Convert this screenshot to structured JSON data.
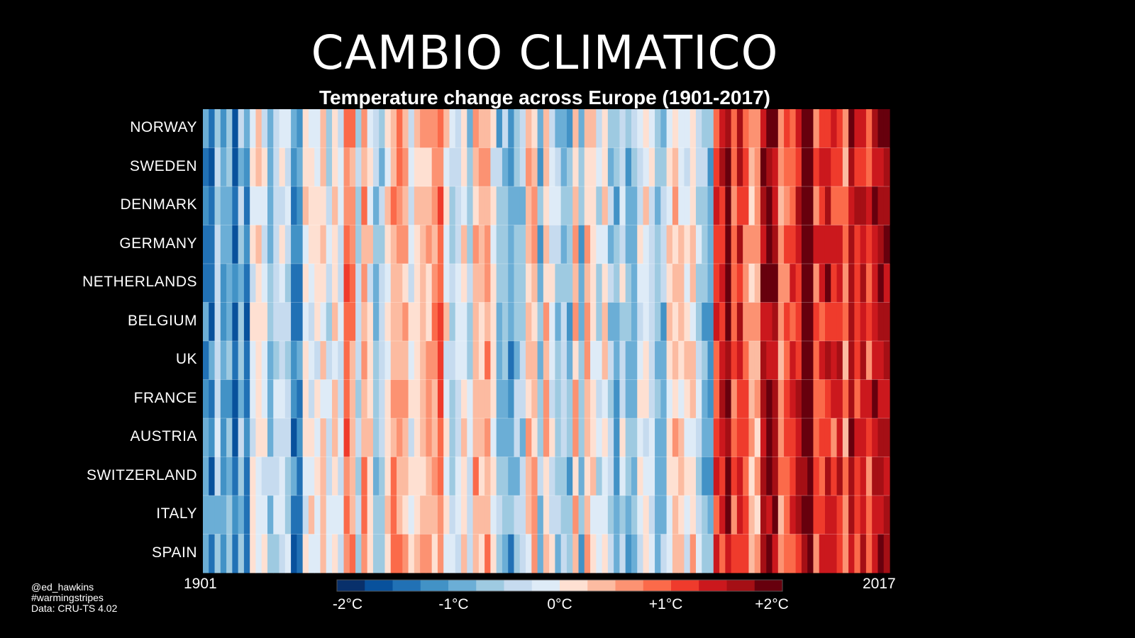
{
  "headline": "CAMBIO CLIMATICO",
  "credits": [
    "@ed_hawkins",
    "#warmingstripes",
    "Data: CRU-TS 4.02"
  ],
  "colors": {
    "background": "#000000",
    "text": "#ffffff",
    "scale": [
      "#08306b",
      "#08519c",
      "#2171b5",
      "#4292c6",
      "#6baed6",
      "#9ecae1",
      "#c6dbef",
      "#deebf7",
      "#fee0d2",
      "#fcbba1",
      "#fc9272",
      "#fb6a4a",
      "#ef3b2c",
      "#cb181d",
      "#a50f15",
      "#67000d"
    ]
  },
  "chart_data": {
    "type": "heatmap",
    "title": "Temperature change across Europe (1901-2017)",
    "x_start_label": "1901",
    "x_end_label": "2017",
    "x_start": 1901,
    "x_end": 2017,
    "rows": [
      "NORWAY",
      "SWEDEN",
      "DENMARK",
      "GERMANY",
      "NETHERLANDS",
      "BELGIUM",
      "UK",
      "FRANCE",
      "AUSTRIA",
      "SWITZERLAND",
      "ITALY",
      "SPAIN"
    ],
    "colorbar": {
      "min": -2.1,
      "max": 2.1,
      "ticks": [
        {
          "value": -2,
          "label": "-2°C"
        },
        {
          "value": -1,
          "label": "-1°C"
        },
        {
          "value": 0,
          "label": "0°C"
        },
        {
          "value": 1,
          "label": "+1°C"
        },
        {
          "value": 2,
          "label": "+2°C"
        }
      ]
    },
    "anomaly_model": {
      "unit": "°C",
      "segments": [
        {
          "from": 1901,
          "to": 1920,
          "mean": -0.7
        },
        {
          "from": 1921,
          "to": 1950,
          "mean": 0.1
        },
        {
          "from": 1951,
          "to": 1987,
          "mean": -0.3
        },
        {
          "from": 1988,
          "to": 2000,
          "mean": 1.1
        },
        {
          "from": 2001,
          "to": 2017,
          "mean": 1.5
        }
      ],
      "year_noise": 0.8,
      "country_noise": 0.35,
      "seed": 42
    }
  }
}
